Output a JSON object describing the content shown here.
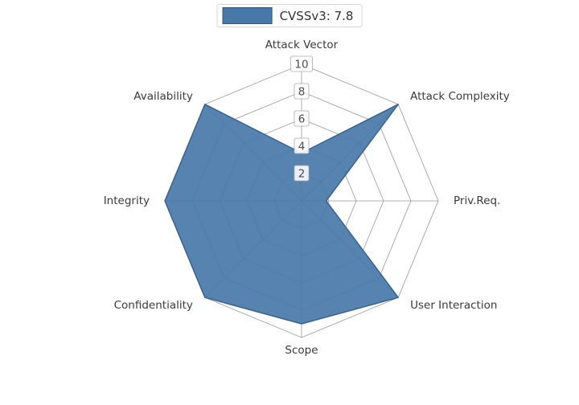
{
  "chart_data": {
    "type": "radar",
    "title": "",
    "legend": "CVSSv3: 7.8",
    "categories": [
      "Attack Vector",
      "Attack Complexity",
      "Priv.Req.",
      "User Interaction",
      "Scope",
      "Confidentiality",
      "Integrity",
      "Availability"
    ],
    "series": [
      {
        "name": "CVSSv3: 7.8",
        "values": [
          3.5,
          10,
          1.8,
          10,
          9,
          10,
          10,
          10
        ]
      }
    ],
    "radial_ticks": [
      2,
      4,
      6,
      8,
      10
    ],
    "rlim": [
      0,
      10
    ],
    "grid": true,
    "legend_position": "top-center",
    "colors": {
      "fill": "#4878A8",
      "stroke": "#39628C",
      "grid": "#999999",
      "tick_text": "#4d4d4d",
      "tick_box_fill": "#ffffff",
      "tick_box_stroke": "#aaaaaa",
      "axis_label": "#3a3a3a",
      "background": "#ffffff"
    }
  }
}
